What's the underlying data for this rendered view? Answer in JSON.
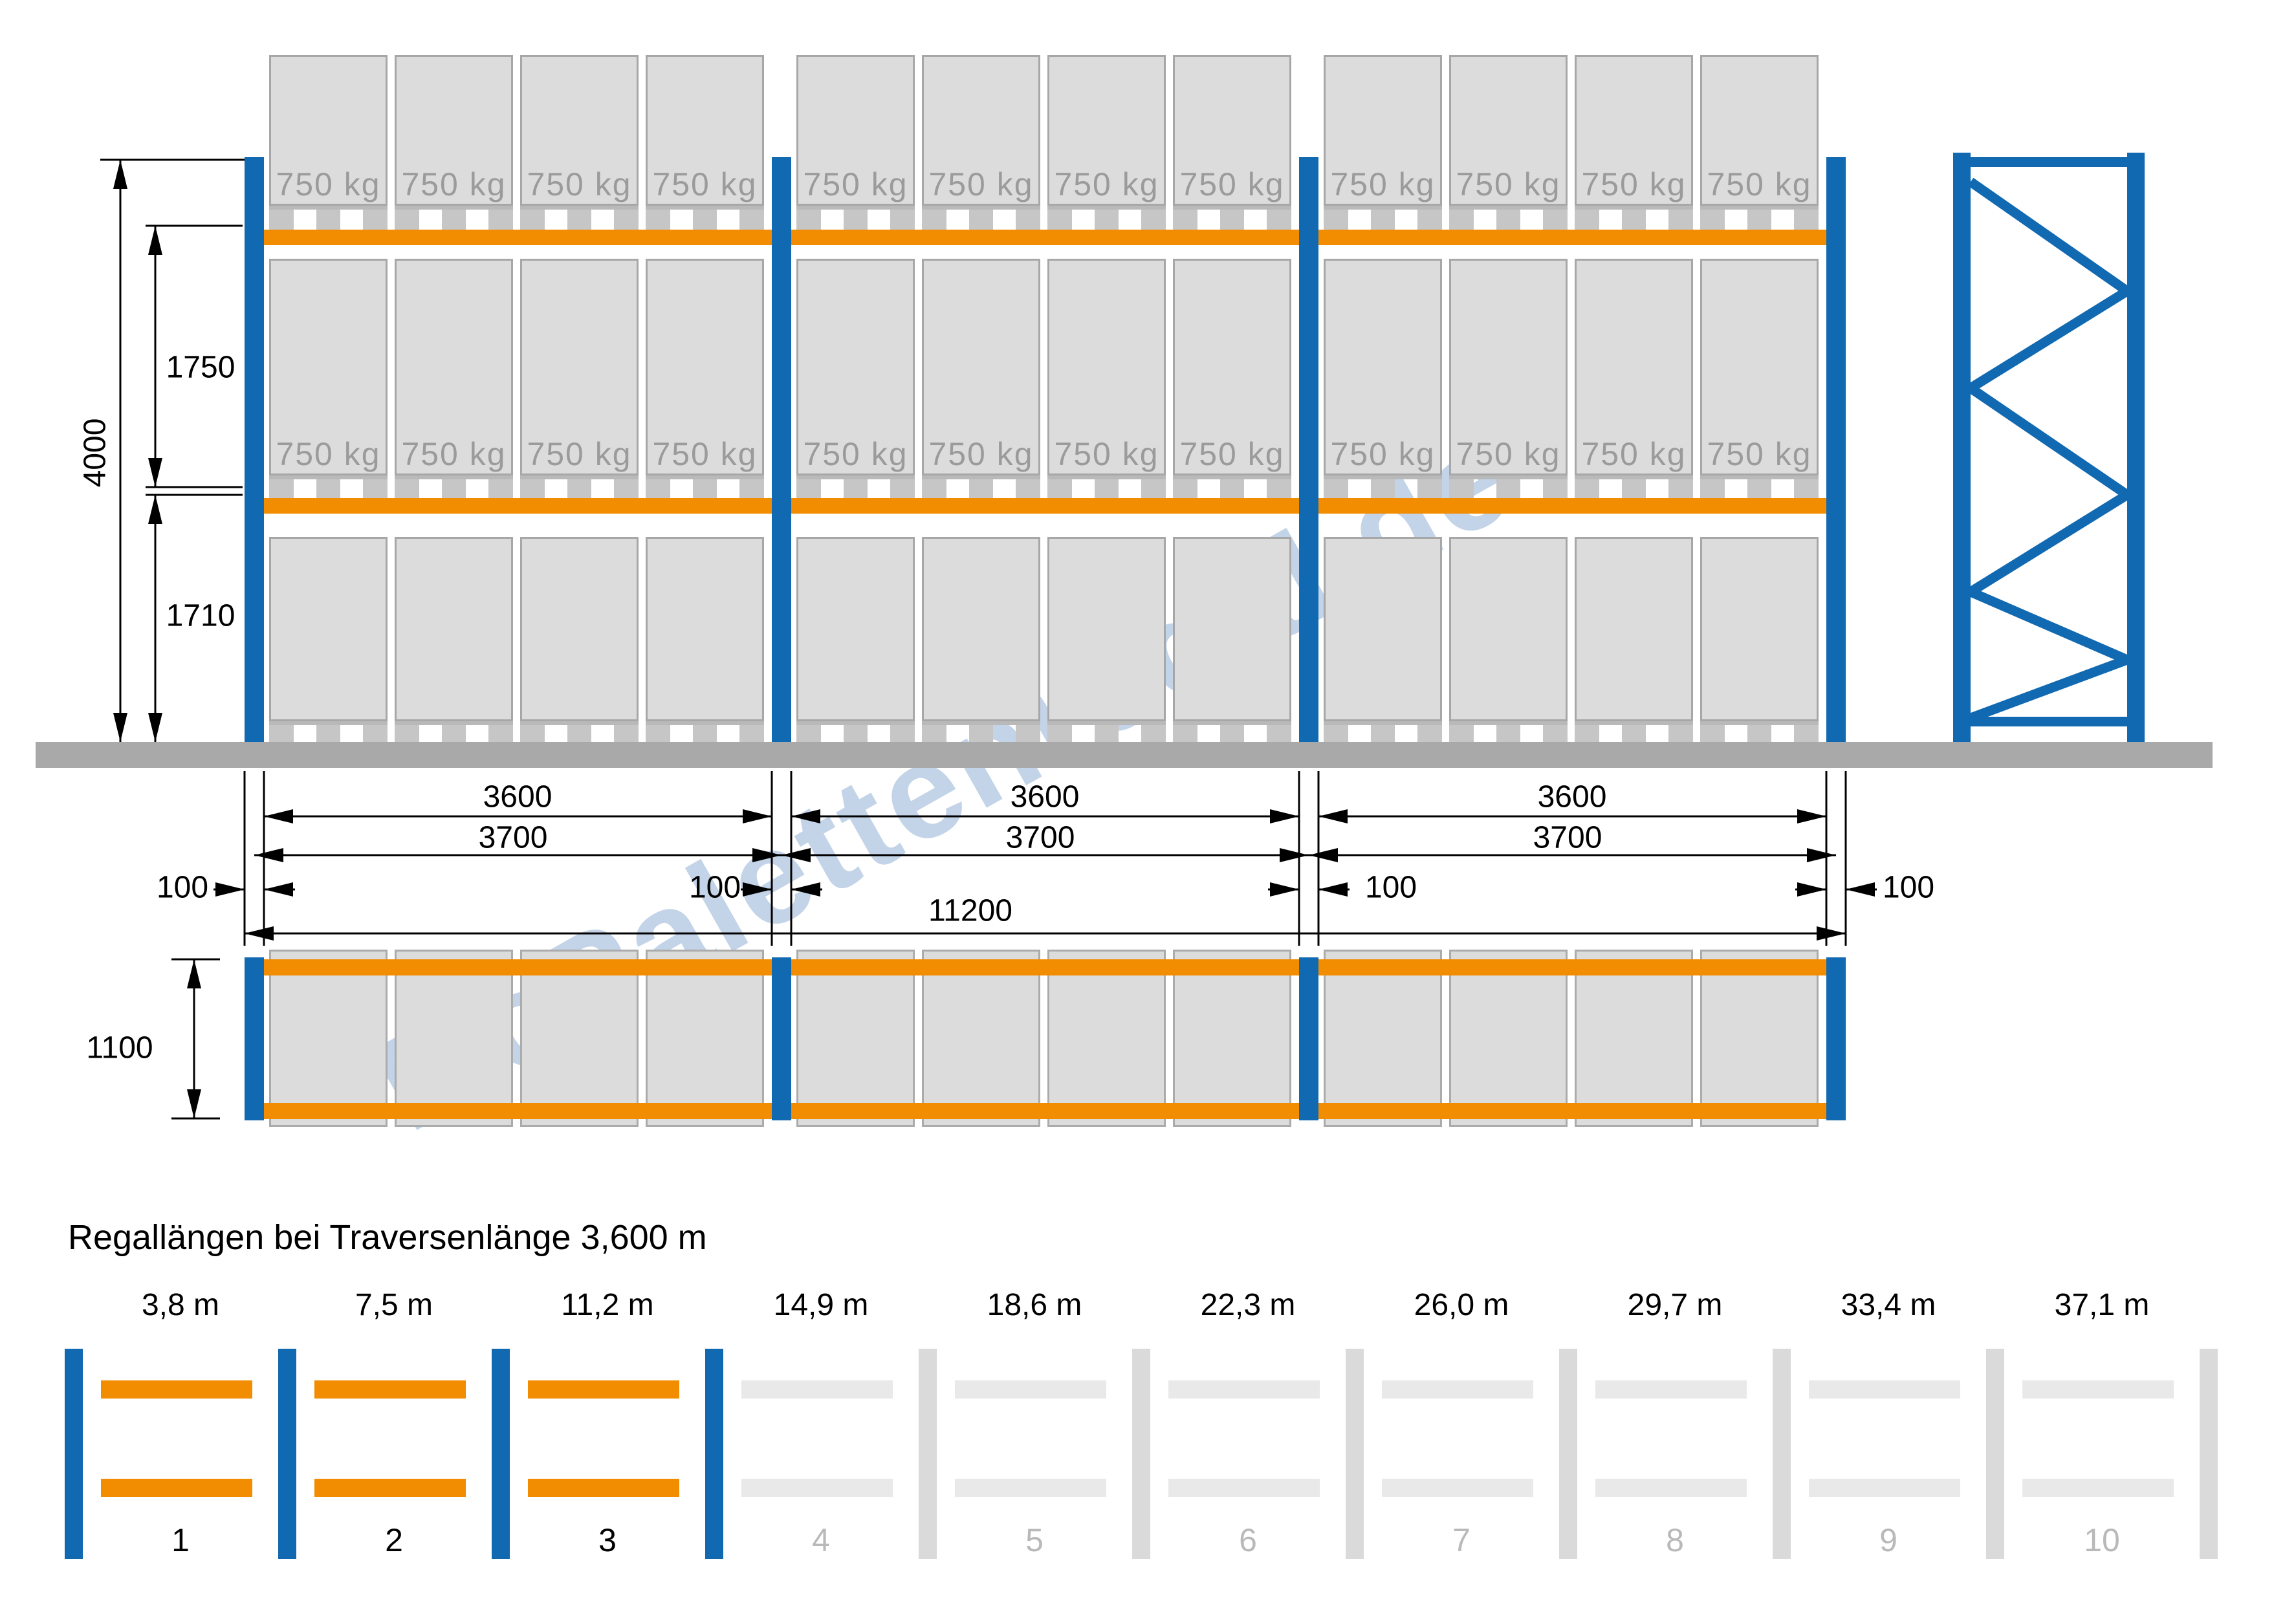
{
  "watermark": {
    "text": "McPalettenregal.de"
  },
  "front_view": {
    "load_label": "750 kg",
    "bay_count": 3,
    "pallets_per_bay": 4,
    "loaded_levels": 2
  },
  "dims": {
    "total_height": "4000",
    "upper_level": "1750",
    "lower_level": "1710",
    "clear": [
      "3600",
      "3600",
      "3600"
    ],
    "pitch": [
      "3700",
      "3700",
      "3700"
    ],
    "post": [
      "100",
      "100",
      "100",
      "100"
    ],
    "overall": "11200",
    "depth": "1100"
  },
  "bottom": {
    "title": "Regallängen bei Traversenlänge 3,600 m",
    "bays": [
      {
        "length": "3,8 m",
        "number": "1",
        "colored": true
      },
      {
        "length": "7,5 m",
        "number": "2",
        "colored": true
      },
      {
        "length": "11,2 m",
        "number": "3",
        "colored": true
      },
      {
        "length": "14,9 m",
        "number": "4",
        "colored": false
      },
      {
        "length": "18,6 m",
        "number": "5",
        "colored": false
      },
      {
        "length": "22,3 m",
        "number": "6",
        "colored": false
      },
      {
        "length": "26,0 m",
        "number": "7",
        "colored": false
      },
      {
        "length": "29,7 m",
        "number": "8",
        "colored": false
      },
      {
        "length": "33,4 m",
        "number": "9",
        "colored": false
      },
      {
        "length": "37,1 m",
        "number": "10",
        "colored": false
      }
    ]
  },
  "colors": {
    "upright_blue": "#1169b1",
    "beam_orange": "#f28c00",
    "pallet_gray": "#dcdcdc",
    "floor_gray": "#a9a9a9",
    "inactive_beam_gray": "#e9e9e9",
    "inactive_post_gray": "#dadada",
    "inactive_number_gray": "#b9b9b9",
    "load_text_gray": "#9b9b9b"
  }
}
